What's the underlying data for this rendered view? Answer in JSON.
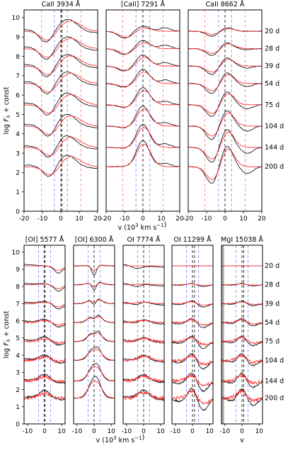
{
  "chart_data": [
    {
      "type": "line",
      "ylabel": "log Fλ + const",
      "xlabel": "v (10³ km s⁻¹)",
      "xlim": [
        -20,
        20
      ],
      "ylim": [
        0,
        10.4
      ],
      "xticks": [
        -20,
        -10,
        0,
        10,
        20
      ],
      "yticks": [
        0,
        1,
        2,
        3,
        4,
        5,
        6,
        7,
        8,
        9,
        10
      ],
      "epochs": [
        "20 d",
        "28 d",
        "39 d",
        "54 d",
        "75 d",
        "104 d",
        "144 d",
        "200 d"
      ],
      "series": [
        {
          "name": "black"
        },
        {
          "name": "red"
        }
      ],
      "panels": [
        {
          "title": "CaII 3934 Å",
          "x_tick_labels": [
            "-20",
            "-10",
            "0",
            "10",
            "20"
          ],
          "red_dashed": [
            -10.5,
            11
          ],
          "blue_dashed": [
            -3.5,
            3.5
          ],
          "black_dashed": [
            0,
            0.6
          ],
          "offsets": [
            9.3,
            8.4,
            7.5,
            6.6,
            5.5,
            4.4,
            3.3,
            2.3
          ],
          "profile": "abs"
        },
        {
          "title": "[CaII] 7291 Å",
          "x_tick_labels": [
            "-20",
            "-10",
            "0",
            "10",
            "20"
          ],
          "red_dashed": [
            -11,
            11
          ],
          "blue_dashed": [
            -3.8,
            3.8
          ],
          "black_dashed": [
            0
          ],
          "offsets": [
            9.3,
            8.4,
            7.5,
            6.6,
            5.5,
            4.4,
            3.3,
            2.3
          ],
          "profile": "em"
        },
        {
          "title": "CaII 8662 Å",
          "x_tick_labels": [
            "-20",
            "-10",
            "0",
            "10",
            "20"
          ],
          "red_dashed": [
            -11,
            11
          ],
          "blue_dashed": [
            -3.5,
            3.5
          ],
          "black_dashed": [
            0
          ],
          "offsets": [
            9.3,
            8.4,
            7.5,
            6.6,
            5.5,
            4.4,
            3.3,
            2.3
          ],
          "profile": "pcyg"
        }
      ]
    },
    {
      "type": "line",
      "ylabel": "log Fλ + const",
      "xlabel": "v (10³ km s⁻¹)",
      "xlim": [
        -12,
        12
      ],
      "ylim": [
        0,
        10.4
      ],
      "yticks": [
        0,
        1,
        2,
        3,
        4,
        5,
        6,
        7,
        8,
        9,
        10
      ],
      "epochs": [
        "20 d",
        "28 d",
        "39 d",
        "54 d",
        "75 d",
        "104 d",
        "144 d",
        "200 d"
      ],
      "panels": [
        {
          "title": "[OI] 5577 Å",
          "x_tick_labels": [
            "-10",
            "0",
            "10"
          ],
          "blue_dashed": [
            -3.5,
            3.5
          ],
          "black_dashed": [
            -0.3,
            0.3
          ],
          "profile": "oi5577"
        },
        {
          "title": "[OI] 6300 Å",
          "x_tick_labels": [
            "-10",
            "0",
            "10"
          ],
          "blue_dashed": [
            -3.5,
            3.5
          ],
          "black_dashed": [
            0
          ],
          "profile": "oi6300"
        },
        {
          "title": "OI 7774 Å",
          "x_tick_labels": [
            "-10",
            "0",
            "10"
          ],
          "blue_dashed": [
            -3.5,
            3.5
          ],
          "black_dashed": [
            0
          ],
          "profile": "oi7774"
        },
        {
          "title": "OI 11299 Å",
          "x_tick_labels": [
            "-10",
            "0",
            "10"
          ],
          "blue_dashed": [
            -3.5,
            3.5
          ],
          "black_dashed": [
            0,
            1.2
          ],
          "profile": "oi11299"
        },
        {
          "title": "MgI 15038 Å",
          "x_tick_labels": [
            "-10",
            "0",
            "10"
          ],
          "blue_dashed": [
            -3.5,
            3.5
          ],
          "black_dashed": [
            0,
            1.0
          ],
          "profile": "mgi",
          "gray_band": [
            -12,
            -10.5
          ],
          "xlabel": "v"
        }
      ]
    }
  ]
}
